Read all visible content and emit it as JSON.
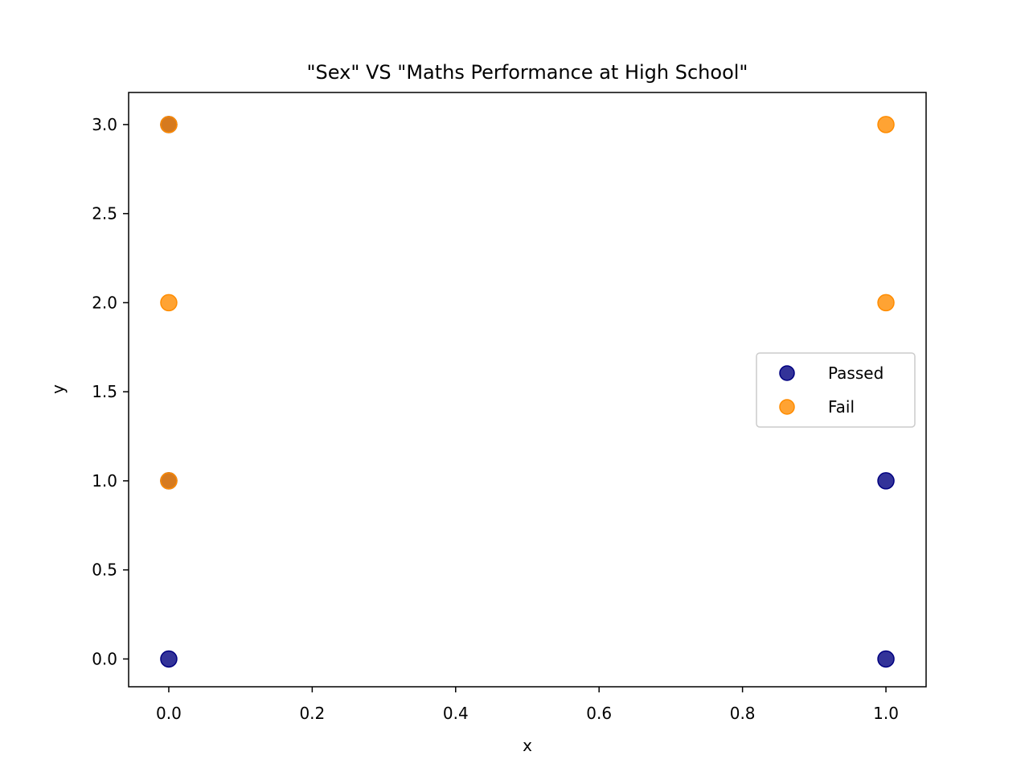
{
  "chart_data": {
    "type": "scatter",
    "title": "\"Sex\" VS \"Maths Performance at High School\"",
    "xlabel": "x",
    "ylabel": "y",
    "xlim": [
      -0.056,
      1.056
    ],
    "ylim": [
      -0.156,
      3.18
    ],
    "xticks": [
      0.0,
      0.2,
      0.4,
      0.6,
      0.8,
      1.0
    ],
    "xtick_labels": [
      "0.0",
      "0.2",
      "0.4",
      "0.6",
      "0.8",
      "1.0"
    ],
    "yticks": [
      0.0,
      0.5,
      1.0,
      1.5,
      2.0,
      2.5,
      3.0
    ],
    "ytick_labels": [
      "0.0",
      "0.5",
      "1.0",
      "1.5",
      "2.0",
      "2.5",
      "3.0"
    ],
    "grid": false,
    "legend_position": "center-right",
    "series": [
      {
        "name": "Passed",
        "color": "#000080",
        "points": [
          [
            0,
            0
          ],
          [
            0,
            1
          ],
          [
            0,
            3
          ],
          [
            1,
            0
          ],
          [
            1,
            1
          ]
        ]
      },
      {
        "name": "Fail",
        "color": "#ff8c00",
        "points": [
          [
            0,
            1
          ],
          [
            0,
            2
          ],
          [
            0,
            3
          ],
          [
            1,
            2
          ],
          [
            1,
            3
          ]
        ]
      }
    ]
  }
}
